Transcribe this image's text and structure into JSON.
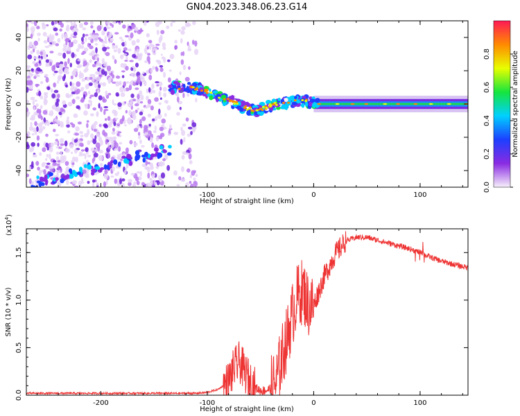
{
  "title": "GN04.2023.348.06.23.G14",
  "chart_data": [
    {
      "type": "heatmap",
      "xlabel": "Height of straight line (km)",
      "ylabel": "Frequency (Hz)",
      "xlim": [
        -270,
        145
      ],
      "ylim": [
        -50,
        50
      ],
      "xticks": [
        -200,
        -100,
        0,
        100
      ],
      "yticks": [
        -40,
        -20,
        0,
        20,
        40
      ],
      "colorbar": {
        "label": "Normalized spectral amplitude",
        "range": [
          0,
          1
        ],
        "ticks": [
          "0.0",
          "0.2",
          "0.4",
          "0.6",
          "0.8"
        ],
        "colors": [
          "#f7f0fb",
          "#8a2be2",
          "#1d3fff",
          "#00d0ff",
          "#16e53d",
          "#e8ff00",
          "#ff8a00",
          "#ff1a55"
        ]
      },
      "ridge": [
        {
          "x": -135,
          "f": 10
        },
        {
          "x": -120,
          "f": 10
        },
        {
          "x": -105,
          "f": 9
        },
        {
          "x": -95,
          "f": 6
        },
        {
          "x": -85,
          "f": 3
        },
        {
          "x": -75,
          "f": 1
        },
        {
          "x": -65,
          "f": -2
        },
        {
          "x": -55,
          "f": -4
        },
        {
          "x": -45,
          "f": -2
        },
        {
          "x": -35,
          "f": 0
        },
        {
          "x": -20,
          "f": 1
        },
        {
          "x": -10,
          "f": 2
        },
        {
          "x": 0,
          "f": 1
        },
        {
          "x": 50,
          "f": 0
        },
        {
          "x": 145,
          "f": 0
        }
      ]
    },
    {
      "type": "line",
      "xlabel": "Height of straight line (km)",
      "ylabel": "SNR (10 * v/v)",
      "yscale_label": "(x10",
      "yscale_exp": "4",
      "yscale_close": ")",
      "xlim": [
        -270,
        145
      ],
      "ylim": [
        0,
        1.75
      ],
      "xticks": [
        -200,
        -100,
        0,
        100
      ],
      "yticks": [
        "0.0",
        "0.5",
        "1.0",
        "1.5"
      ],
      "series": [
        {
          "color": "#ee3333",
          "x": [
            -270,
            -200,
            -150,
            -110,
            -100,
            -90,
            -80,
            -75,
            -70,
            -65,
            -60,
            -55,
            -50,
            -45,
            -40,
            -35,
            -30,
            -25,
            -20,
            -15,
            -10,
            -5,
            0,
            10,
            20,
            30,
            40,
            50,
            60,
            70,
            80,
            90,
            100,
            110,
            120,
            130,
            145
          ],
          "y": [
            0.02,
            0.02,
            0.02,
            0.02,
            0.03,
            0.06,
            0.14,
            0.28,
            0.35,
            0.25,
            0.15,
            0.08,
            0.05,
            0.05,
            0.07,
            0.15,
            0.4,
            0.6,
            0.85,
            1.05,
            1.1,
            0.95,
            0.95,
            1.25,
            1.48,
            1.62,
            1.66,
            1.66,
            1.63,
            1.6,
            1.57,
            1.54,
            1.5,
            1.45,
            1.41,
            1.38,
            1.34
          ]
        }
      ]
    }
  ]
}
